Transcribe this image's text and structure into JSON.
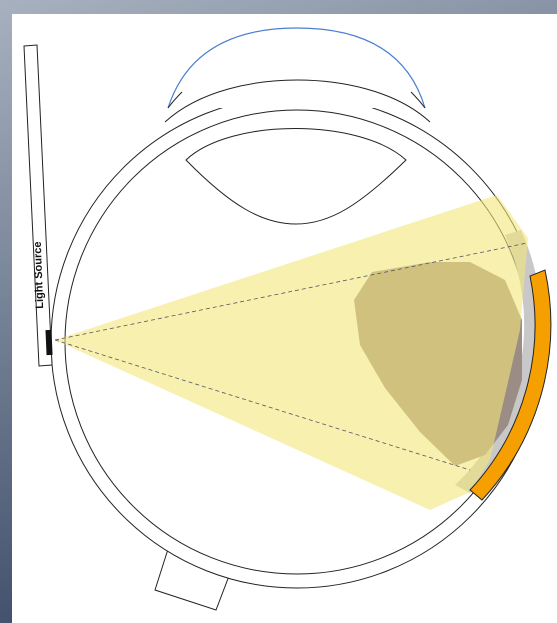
{
  "labels": {
    "light_source": "Light Source"
  }
}
